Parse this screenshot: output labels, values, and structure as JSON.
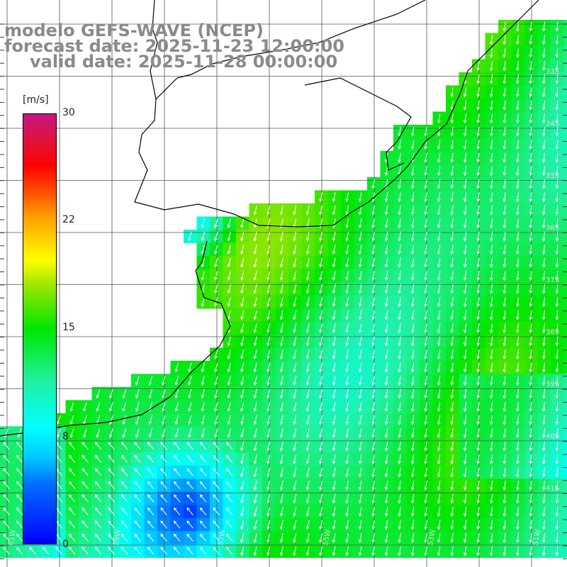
{
  "title": {
    "model": "modelo GEFS-WAVE (NCEP)",
    "forecast": "forecast date: 2025-11-23 12:00:00",
    "valid": "valid date: 2025-11-28 00:00:00"
  },
  "colorbar": {
    "unit": "[m/s]",
    "ticks": [
      "30",
      "22",
      "15",
      "8",
      "0"
    ],
    "tick_values": [
      30,
      22,
      15,
      8,
      0
    ],
    "range": [
      0,
      30
    ],
    "colors": [
      "#0000ff",
      "#0070ff",
      "#00c8ff",
      "#00ffff",
      "#20f0a0",
      "#00e600",
      "#9be600",
      "#ffff00",
      "#ffa000",
      "#ff4000",
      "#ff0000",
      "#dc143c",
      "#c71585"
    ]
  },
  "map": {
    "land_color": "#ffffff",
    "grid_color": "#555555",
    "arrow_color": "#ffffff",
    "lat_labels": [
      "33S",
      "34S",
      "35S",
      "36S",
      "37S",
      "38S",
      "39S",
      "40S",
      "41S"
    ],
    "lon_labels": [
      "61W",
      "59W",
      "57W",
      "55W",
      "53W",
      "51W"
    ]
  }
}
